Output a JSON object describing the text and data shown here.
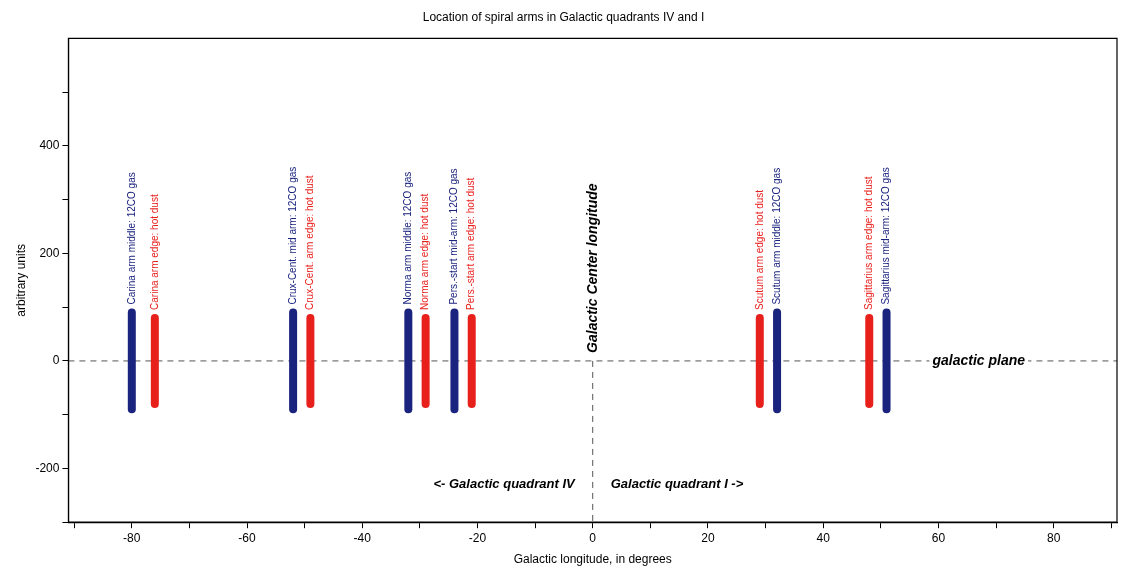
{
  "chart_data": {
    "type": "line",
    "title": "Location of spiral arms in Galactic quadrants IV and I",
    "xlabel": "Galactic longitude, in degrees",
    "ylabel": "arbitrary units",
    "xlim": [
      -91,
      91
    ],
    "xticks": [
      {
        "value": -90,
        "label": null
      },
      -80,
      {
        "value": -70,
        "label": null
      },
      -60,
      {
        "value": -50,
        "label": null
      },
      -40,
      {
        "value": -30,
        "label": null
      },
      -20,
      {
        "value": -10,
        "label": null
      },
      0,
      {
        "value": 10,
        "label": null
      },
      20,
      {
        "value": 30,
        "label": null
      },
      40,
      {
        "value": 50,
        "label": null
      },
      60,
      {
        "value": 70,
        "label": null
      },
      80,
      {
        "value": 90,
        "label": null
      }
    ],
    "ylim": [
      -300,
      600
    ],
    "yticks": [
      {
        "value": -300,
        "label": null
      },
      -200,
      {
        "value": -100,
        "label": null
      },
      0,
      {
        "value": 100,
        "label": null
      },
      200,
      {
        "value": 300,
        "label": null
      },
      400,
      {
        "value": 500,
        "label": null
      }
    ],
    "grid": false,
    "legend": false,
    "marker": "none",
    "line_style": "solid",
    "series": [
      {
        "name": "Carina arm middle: 12CO gas",
        "color": "#1a237e",
        "x": [
          -80,
          -80
        ],
        "values": [
          -90,
          90
        ]
      },
      {
        "name": "Carina arm edge: hot dust",
        "color": "#e8201c",
        "x": [
          -76,
          -76
        ],
        "values": [
          -80,
          80
        ]
      },
      {
        "name": "Crux-Cent. mid arm: 12CO gas",
        "color": "#1a237e",
        "x": [
          -52,
          -52
        ],
        "values": [
          -90,
          90
        ]
      },
      {
        "name": "Crux-Cent. arm edge: hot dust",
        "color": "#e8201c",
        "x": [
          -49,
          -49
        ],
        "values": [
          -80,
          80
        ]
      },
      {
        "name": "Norma arm middle: 12CO gas",
        "color": "#1a237e",
        "x": [
          -32,
          -32
        ],
        "values": [
          -90,
          90
        ]
      },
      {
        "name": "Norma arm edge: hot dust",
        "color": "#e8201c",
        "x": [
          -29,
          -29
        ],
        "values": [
          -80,
          80
        ]
      },
      {
        "name": "Pers.-start mid-arm: 12CO gas",
        "color": "#1a237e",
        "x": [
          -24,
          -24
        ],
        "values": [
          -90,
          90
        ]
      },
      {
        "name": "Pers.-start arm edge: hot dust",
        "color": "#e8201c",
        "x": [
          -21,
          -21
        ],
        "values": [
          -80,
          80
        ]
      },
      {
        "name": "Scutum arm edge: hot dust",
        "color": "#e8201c",
        "x": [
          29,
          29
        ],
        "values": [
          -80,
          80
        ]
      },
      {
        "name": "Scutum arm middle: 12CO gas",
        "color": "#1a237e",
        "x": [
          32,
          32
        ],
        "values": [
          -90,
          90
        ]
      },
      {
        "name": "Sagittarius arm edge: hot dust",
        "color": "#e8201c",
        "x": [
          48,
          48
        ],
        "values": [
          -80,
          80
        ]
      },
      {
        "name": "Sagittarius mid-arm: 12CO gas",
        "color": "#1a237e",
        "x": [
          51,
          51
        ],
        "values": [
          -90,
          90
        ]
      }
    ],
    "ref_lines": [
      {
        "axis": "y",
        "value": 0,
        "label": "galactic plane",
        "line_style": "dashed",
        "color": "#555555"
      },
      {
        "axis": "x",
        "value": 0,
        "label": "Galactic Center longitude",
        "line_style": "dashed",
        "color": "#555555"
      }
    ],
    "annotations": [
      "<- Galactic quadrant IV",
      "Galactic quadrant I ->"
    ]
  }
}
